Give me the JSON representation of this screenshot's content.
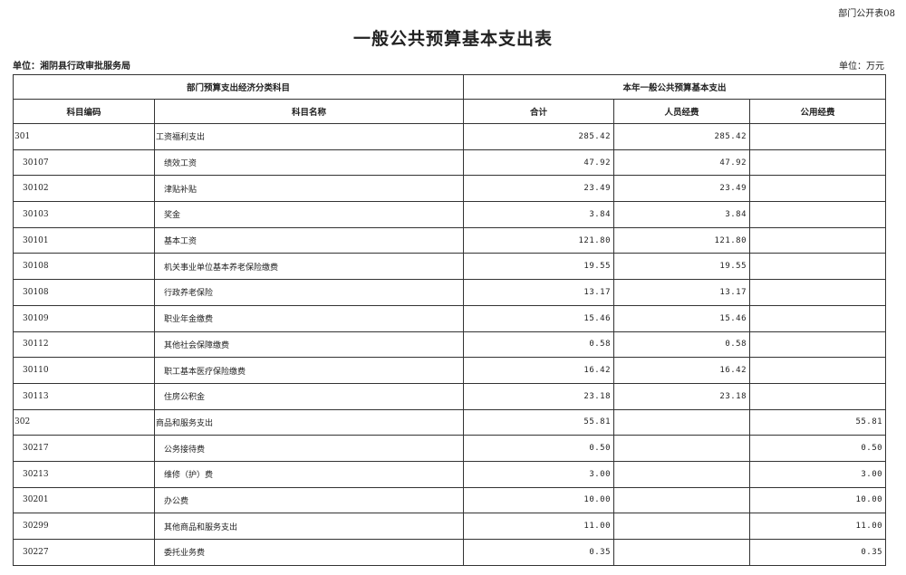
{
  "form_number": "部门公开表08",
  "title": "一般公共预算基本支出表",
  "unit_org": "单位：湘阴县行政审批服务局",
  "unit_currency": "单位：万元",
  "header": {
    "group_left": "部门预算支出经济分类科目",
    "group_right": "本年一般公共预算基本支出",
    "code": "科目编码",
    "name": "科目名称",
    "total": "合计",
    "personnel": "人员经费",
    "public": "公用经费"
  },
  "rows": [
    {
      "level": 1,
      "code": "301",
      "name": "工资福利支出",
      "total": "285.42",
      "personnel": "285.42",
      "public": ""
    },
    {
      "level": 2,
      "code": "30107",
      "name": "绩效工资",
      "total": "47.92",
      "personnel": "47.92",
      "public": ""
    },
    {
      "level": 2,
      "code": "30102",
      "name": "津贴补贴",
      "total": "23.49",
      "personnel": "23.49",
      "public": ""
    },
    {
      "level": 2,
      "code": "30103",
      "name": "奖金",
      "total": "3.84",
      "personnel": "3.84",
      "public": ""
    },
    {
      "level": 2,
      "code": "30101",
      "name": "基本工资",
      "total": "121.80",
      "personnel": "121.80",
      "public": ""
    },
    {
      "level": 2,
      "code": "30108",
      "name": "机关事业单位基本养老保险缴费",
      "total": "19.55",
      "personnel": "19.55",
      "public": ""
    },
    {
      "level": 2,
      "code": "30108",
      "name": "行政养老保险",
      "total": "13.17",
      "personnel": "13.17",
      "public": ""
    },
    {
      "level": 2,
      "code": "30109",
      "name": "职业年金缴费",
      "total": "15.46",
      "personnel": "15.46",
      "public": ""
    },
    {
      "level": 2,
      "code": "30112",
      "name": "其他社会保障缴费",
      "total": "0.58",
      "personnel": "0.58",
      "public": ""
    },
    {
      "level": 2,
      "code": "30110",
      "name": "职工基本医疗保险缴费",
      "total": "16.42",
      "personnel": "16.42",
      "public": ""
    },
    {
      "level": 2,
      "code": "30113",
      "name": "住房公积金",
      "total": "23.18",
      "personnel": "23.18",
      "public": ""
    },
    {
      "level": 1,
      "code": "302",
      "name": "商品和服务支出",
      "total": "55.81",
      "personnel": "",
      "public": "55.81"
    },
    {
      "level": 2,
      "code": "30217",
      "name": "公务接待费",
      "total": "0.50",
      "personnel": "",
      "public": "0.50"
    },
    {
      "level": 2,
      "code": "30213",
      "name": "维修（护）费",
      "total": "3.00",
      "personnel": "",
      "public": "3.00"
    },
    {
      "level": 2,
      "code": "30201",
      "name": "办公费",
      "total": "10.00",
      "personnel": "",
      "public": "10.00"
    },
    {
      "level": 2,
      "code": "30299",
      "name": "其他商品和服务支出",
      "total": "11.00",
      "personnel": "",
      "public": "11.00"
    },
    {
      "level": 2,
      "code": "30227",
      "name": "委托业务费",
      "total": "0.35",
      "personnel": "",
      "public": "0.35"
    }
  ]
}
